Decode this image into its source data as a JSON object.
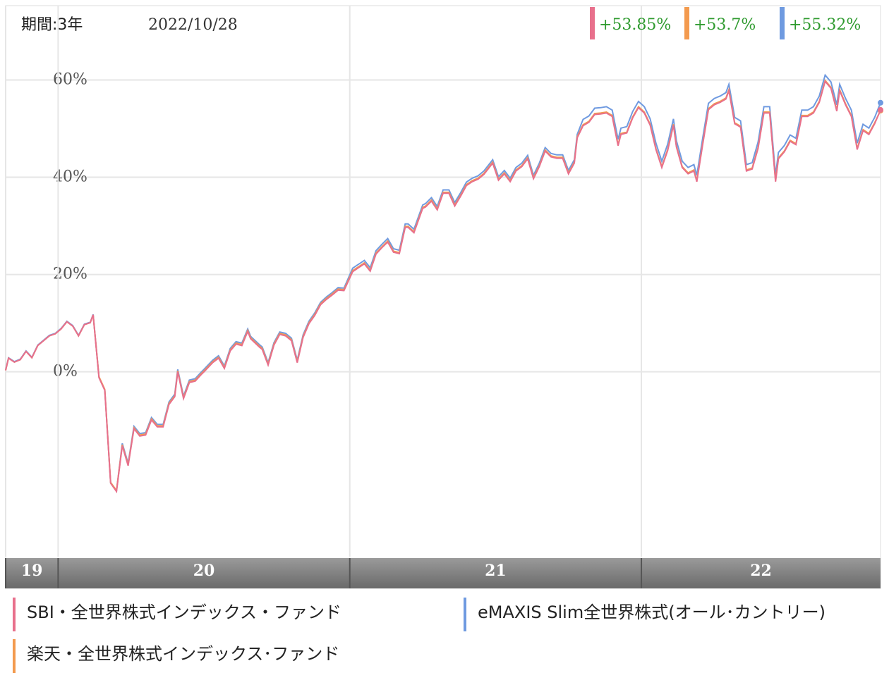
{
  "chart_data": {
    "type": "line",
    "period": "期間:3年",
    "date": "2022/10/28",
    "xlim": [
      2019.82,
      2022.82
    ],
    "xticks": [
      {
        "value": 2019.82,
        "label": "19"
      },
      {
        "value": 2020,
        "label": "20"
      },
      {
        "value": 2021,
        "label": "21"
      },
      {
        "value": 2022,
        "label": "22"
      }
    ],
    "ylim": [
      -38,
      74.7
    ],
    "yticks": [
      {
        "value": 0,
        "label": "0%"
      },
      {
        "value": 20,
        "label": "20%"
      },
      {
        "value": 40,
        "label": "40%"
      },
      {
        "value": 60,
        "label": "60%"
      }
    ],
    "grid": true,
    "x": [
      2019.82,
      2019.83,
      2019.85,
      2019.87,
      2019.89,
      2019.91,
      2019.93,
      2019.97,
      2019.99,
      2020.01,
      2020.03,
      2020.05,
      2020.07,
      2020.09,
      2020.11,
      2020.12,
      2020.14,
      2020.16,
      2020.18,
      2020.2,
      2020.22,
      2020.24,
      2020.26,
      2020.28,
      2020.3,
      2020.32,
      2020.34,
      2020.36,
      2020.38,
      2020.4,
      2020.41,
      2020.43,
      2020.45,
      2020.47,
      2020.49,
      2020.5,
      2020.53,
      2020.55,
      2020.57,
      2020.59,
      2020.61,
      2020.63,
      2020.65,
      2020.66,
      2020.69,
      2020.7,
      2020.72,
      2020.74,
      2020.76,
      2020.78,
      2020.8,
      2020.82,
      2020.84,
      2020.86,
      2020.88,
      2020.9,
      2020.92,
      2020.94,
      2020.96,
      2020.98,
      2021.01,
      2021.03,
      2021.05,
      2021.07,
      2021.09,
      2021.11,
      2021.13,
      2021.15,
      2021.17,
      2021.19,
      2021.2,
      2021.22,
      2021.25,
      2021.26,
      2021.28,
      2021.3,
      2021.32,
      2021.34,
      2021.36,
      2021.38,
      2021.4,
      2021.42,
      2021.44,
      2021.46,
      2021.49,
      2021.51,
      2021.53,
      2021.55,
      2021.57,
      2021.59,
      2021.61,
      2021.63,
      2021.65,
      2021.67,
      2021.69,
      2021.71,
      2021.73,
      2021.75,
      2021.77,
      2021.78,
      2021.8,
      2021.82,
      2021.84,
      2021.86,
      2021.88,
      2021.9,
      2021.92,
      2021.93,
      2021.95,
      2021.97,
      2021.99,
      2022.01,
      2022.03,
      2022.05,
      2022.07,
      2022.09,
      2022.11,
      2022.12,
      2022.14,
      2022.16,
      2022.18,
      2022.19,
      2022.21,
      2022.23,
      2022.25,
      2022.27,
      2022.29,
      2022.3,
      2022.32,
      2022.34,
      2022.36,
      2022.38,
      2022.4,
      2022.42,
      2022.44,
      2022.46,
      2022.47,
      2022.49,
      2022.51,
      2022.53,
      2022.55,
      2022.57,
      2022.59,
      2022.61,
      2022.63,
      2022.65,
      2022.67,
      2022.68,
      2022.7,
      2022.72,
      2022.74,
      2022.76,
      2022.78,
      2022.8,
      2022.82
    ],
    "series": [
      {
        "name": "SBI・全世界株式インデックス・ファンド",
        "color": "#e8708c",
        "end_label": "+53.85%",
        "values": [
          0.3,
          2.8,
          2.0,
          2.5,
          4.2,
          2.9,
          5.4,
          7.4,
          7.8,
          8.8,
          10.3,
          9.4,
          7.4,
          9.7,
          10.1,
          11.7,
          -1.2,
          -3.8,
          -22.9,
          -24.6,
          -15.2,
          -19.3,
          -11.7,
          -13.2,
          -13.0,
          -9.9,
          -11.3,
          -11.3,
          -6.7,
          -5.1,
          0,
          -5.5,
          -2.2,
          -1.9,
          -0.6,
          0,
          1.9,
          2.8,
          0.7,
          4.3,
          5.7,
          5.4,
          8.3,
          6.8,
          5.1,
          4.6,
          1.4,
          5.5,
          7.7,
          7.4,
          6.4,
          1.9,
          7.1,
          9.9,
          11.6,
          13.8,
          14.9,
          15.8,
          16.8,
          16.7,
          20.6,
          21.4,
          22.2,
          20.7,
          24.2,
          25.5,
          26.7,
          24.6,
          24.3,
          29.7,
          29.7,
          28.6,
          33.6,
          33.9,
          35.1,
          33.3,
          36.7,
          36.7,
          34.1,
          36.1,
          38.3,
          39.1,
          39.6,
          40.6,
          42.9,
          39.4,
          40.7,
          39.1,
          41.3,
          42.2,
          43.8,
          39.7,
          42.2,
          45.4,
          44.2,
          43.9,
          43.9,
          40.7,
          42.9,
          48.1,
          50.6,
          51.3,
          52.9,
          53.0,
          53.2,
          52.5,
          46.5,
          48.8,
          49.1,
          52.2,
          54.3,
          53.2,
          50.7,
          45.7,
          42.0,
          45.5,
          50.7,
          46.2,
          42.0,
          40.7,
          41.3,
          39.1,
          46.7,
          53.9,
          54.9,
          55.4,
          56.1,
          57.8,
          51.0,
          50.3,
          41.3,
          41.7,
          45.9,
          53.2,
          53.2,
          39.1,
          43.8,
          45.2,
          47.4,
          46.7,
          52.5,
          52.5,
          53.2,
          55.4,
          59.7,
          58.3,
          53.6,
          57.8,
          54.9,
          52.5,
          45.7,
          49.6,
          48.8,
          51.0,
          53.85
        ]
      },
      {
        "name": "楽天・全世界株式インデックス･ファンド",
        "color": "#f39a4e",
        "end_label": "+53.7%",
        "values": [
          0.3,
          2.8,
          2.0,
          2.5,
          4.2,
          2.9,
          5.4,
          7.4,
          7.8,
          8.8,
          10.3,
          9.4,
          7.4,
          9.7,
          10.1,
          11.7,
          -1.0,
          -3.6,
          -22.7,
          -24.4,
          -15.0,
          -19.1,
          -11.5,
          -13.0,
          -12.8,
          -9.7,
          -11.1,
          -11.1,
          -6.5,
          -4.9,
          0.2,
          -5.3,
          -2.0,
          -1.7,
          -0.4,
          0.2,
          2.1,
          3.0,
          0.9,
          4.5,
          5.9,
          5.6,
          8.5,
          7.0,
          5.3,
          4.8,
          1.6,
          5.7,
          7.9,
          7.6,
          6.6,
          2.1,
          7.3,
          10.1,
          11.8,
          14.0,
          15.1,
          16.0,
          17.0,
          16.9,
          20.8,
          21.6,
          22.4,
          20.9,
          24.4,
          25.7,
          26.9,
          24.8,
          24.5,
          29.9,
          29.9,
          28.8,
          33.8,
          34.1,
          35.3,
          33.5,
          36.9,
          36.9,
          34.3,
          36.3,
          38.5,
          39.3,
          39.8,
          40.8,
          43.1,
          39.6,
          40.9,
          39.3,
          41.5,
          42.4,
          44.0,
          39.9,
          42.4,
          45.6,
          44.4,
          44.1,
          44.1,
          40.9,
          43.1,
          48.3,
          50.8,
          51.5,
          53.1,
          53.2,
          53.4,
          52.7,
          46.7,
          49.0,
          49.3,
          52.4,
          54.5,
          53.4,
          50.9,
          45.9,
          42.2,
          45.7,
          50.9,
          46.4,
          42.2,
          40.9,
          41.5,
          39.3,
          46.9,
          54.1,
          55.1,
          55.6,
          56.3,
          58.0,
          51.2,
          50.5,
          41.5,
          41.9,
          46.1,
          53.4,
          53.4,
          39.3,
          44.0,
          45.4,
          47.6,
          46.9,
          52.7,
          52.7,
          53.4,
          55.6,
          59.9,
          58.5,
          53.8,
          58.0,
          55.1,
          52.7,
          45.9,
          49.8,
          49.0,
          51.2,
          53.7
        ]
      },
      {
        "name": "eMAXIS Slim全世界株式(オール･カントリー)",
        "color": "#6f9ae0",
        "end_label": "+55.32%",
        "values": [
          0.4,
          2.9,
          2.1,
          2.6,
          4.3,
          3.0,
          5.5,
          7.5,
          7.9,
          8.9,
          10.4,
          9.5,
          7.5,
          9.8,
          10.2,
          11.8,
          -1.1,
          -3.7,
          -22.8,
          -24.5,
          -14.7,
          -18.8,
          -11.2,
          -12.7,
          -12.5,
          -9.4,
          -10.8,
          -10.8,
          -6.2,
          -4.6,
          0.5,
          -5.0,
          -1.7,
          -1.4,
          -0.1,
          0.5,
          2.4,
          3.3,
          1.2,
          4.8,
          6.2,
          5.9,
          8.8,
          7.3,
          5.6,
          5.1,
          1.9,
          6.0,
          8.2,
          7.9,
          6.9,
          2.4,
          7.6,
          10.4,
          12.1,
          14.3,
          15.4,
          16.3,
          17.3,
          17.2,
          21.3,
          22.1,
          22.9,
          21.4,
          24.9,
          26.2,
          27.4,
          25.3,
          25.0,
          30.4,
          30.4,
          29.3,
          34.3,
          34.6,
          35.8,
          34.0,
          37.4,
          37.4,
          34.8,
          36.8,
          39.0,
          39.8,
          40.3,
          41.3,
          43.6,
          40.1,
          41.4,
          39.8,
          42.0,
          42.9,
          44.5,
          40.4,
          42.9,
          46.1,
          44.9,
          44.6,
          44.6,
          41.4,
          43.6,
          48.8,
          51.9,
          52.6,
          54.2,
          54.3,
          54.5,
          53.8,
          47.8,
          50.1,
          50.4,
          53.5,
          55.6,
          54.5,
          52.0,
          47.0,
          43.3,
          46.8,
          52.0,
          47.5,
          43.3,
          42.0,
          42.6,
          40.4,
          48.0,
          55.2,
          56.2,
          56.7,
          57.4,
          59.1,
          52.3,
          51.6,
          42.6,
          43.0,
          47.2,
          54.5,
          54.5,
          40.4,
          45.1,
          46.5,
          48.7,
          48.0,
          53.8,
          53.8,
          54.5,
          56.7,
          61.0,
          59.6,
          54.9,
          59.1,
          56.2,
          53.8,
          47.0,
          50.9,
          50.1,
          52.3,
          55.32
        ]
      }
    ]
  }
}
